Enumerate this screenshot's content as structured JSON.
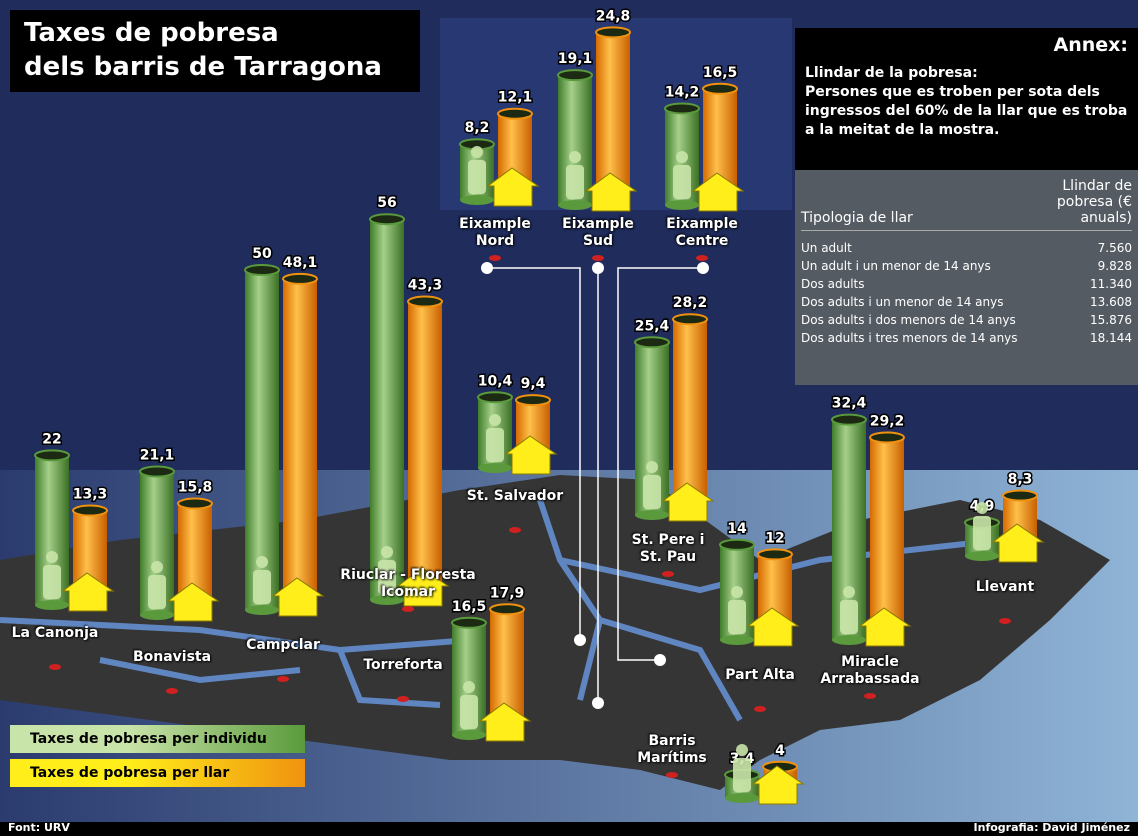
{
  "chart_data": {
    "type": "cylinder-map",
    "title_lines": [
      "Taxes de pobresa",
      "dels barris de Tarragona"
    ],
    "categories": [
      "La Canonja",
      "Bonavista",
      "Campclar",
      "Riuclar - Floresta Icomar",
      "Torreforta",
      "Eixample Nord",
      "Eixample Sud",
      "Eixample Centre",
      "St. Salvador",
      "St. Pere i St. Pau",
      "Part Alta",
      "Miracle Arrabassada",
      "Llevant",
      "Barris Marítims"
    ],
    "series": [
      {
        "name": "Taxes de pobresa per individu",
        "color": "#5a9a3c",
        "values": [
          22,
          21.1,
          50,
          56,
          16.5,
          8.2,
          19.1,
          14.2,
          10.4,
          25.4,
          14,
          32.4,
          4.9,
          3.4
        ],
        "value_labels": [
          "22",
          "21,1",
          "50",
          "56",
          "16,5",
          "8,2",
          "19,1",
          "14,2",
          "10,4",
          "25,4",
          "14",
          "32,4",
          "4,9",
          "3,4"
        ]
      },
      {
        "name": "Taxes de pobresa per llar",
        "color": "#f0920f",
        "values": [
          13.3,
          15.8,
          48.1,
          43.3,
          17.9,
          12.1,
          24.8,
          16.5,
          9.4,
          28.2,
          12,
          29.2,
          8.3,
          4
        ],
        "value_labels": [
          "13,3",
          "15,8",
          "48,1",
          "43,3",
          "17,9",
          "12,1",
          "24,8",
          "16,5",
          "9,4",
          "28,2",
          "12",
          "29,2",
          "8,3",
          "4"
        ]
      }
    ],
    "source": "Font: URV",
    "credit": "Infografia: David Jiménez"
  },
  "annex": {
    "title": "Annex:",
    "heading": "Llindar de la pobresa:",
    "text": "Persones que es troben per sota dels ingressos del 60% de la llar que es troba a la meitat de la mostra.",
    "table": {
      "headers": [
        "Tipologia de llar",
        "Llindar de pobresa (€ anuals)"
      ],
      "rows": [
        [
          "Un adult",
          "7.560"
        ],
        [
          "Un adult i un menor de 14 anys",
          "9.828"
        ],
        [
          "Dos adults",
          "11.340"
        ],
        [
          "Dos adults i un menor de 14 anys",
          "13.608"
        ],
        [
          "Dos adults i dos menors de 14 anys",
          "15.876"
        ],
        [
          "Dos adults i tres menors de 14 anys",
          "18.144"
        ]
      ]
    }
  }
}
